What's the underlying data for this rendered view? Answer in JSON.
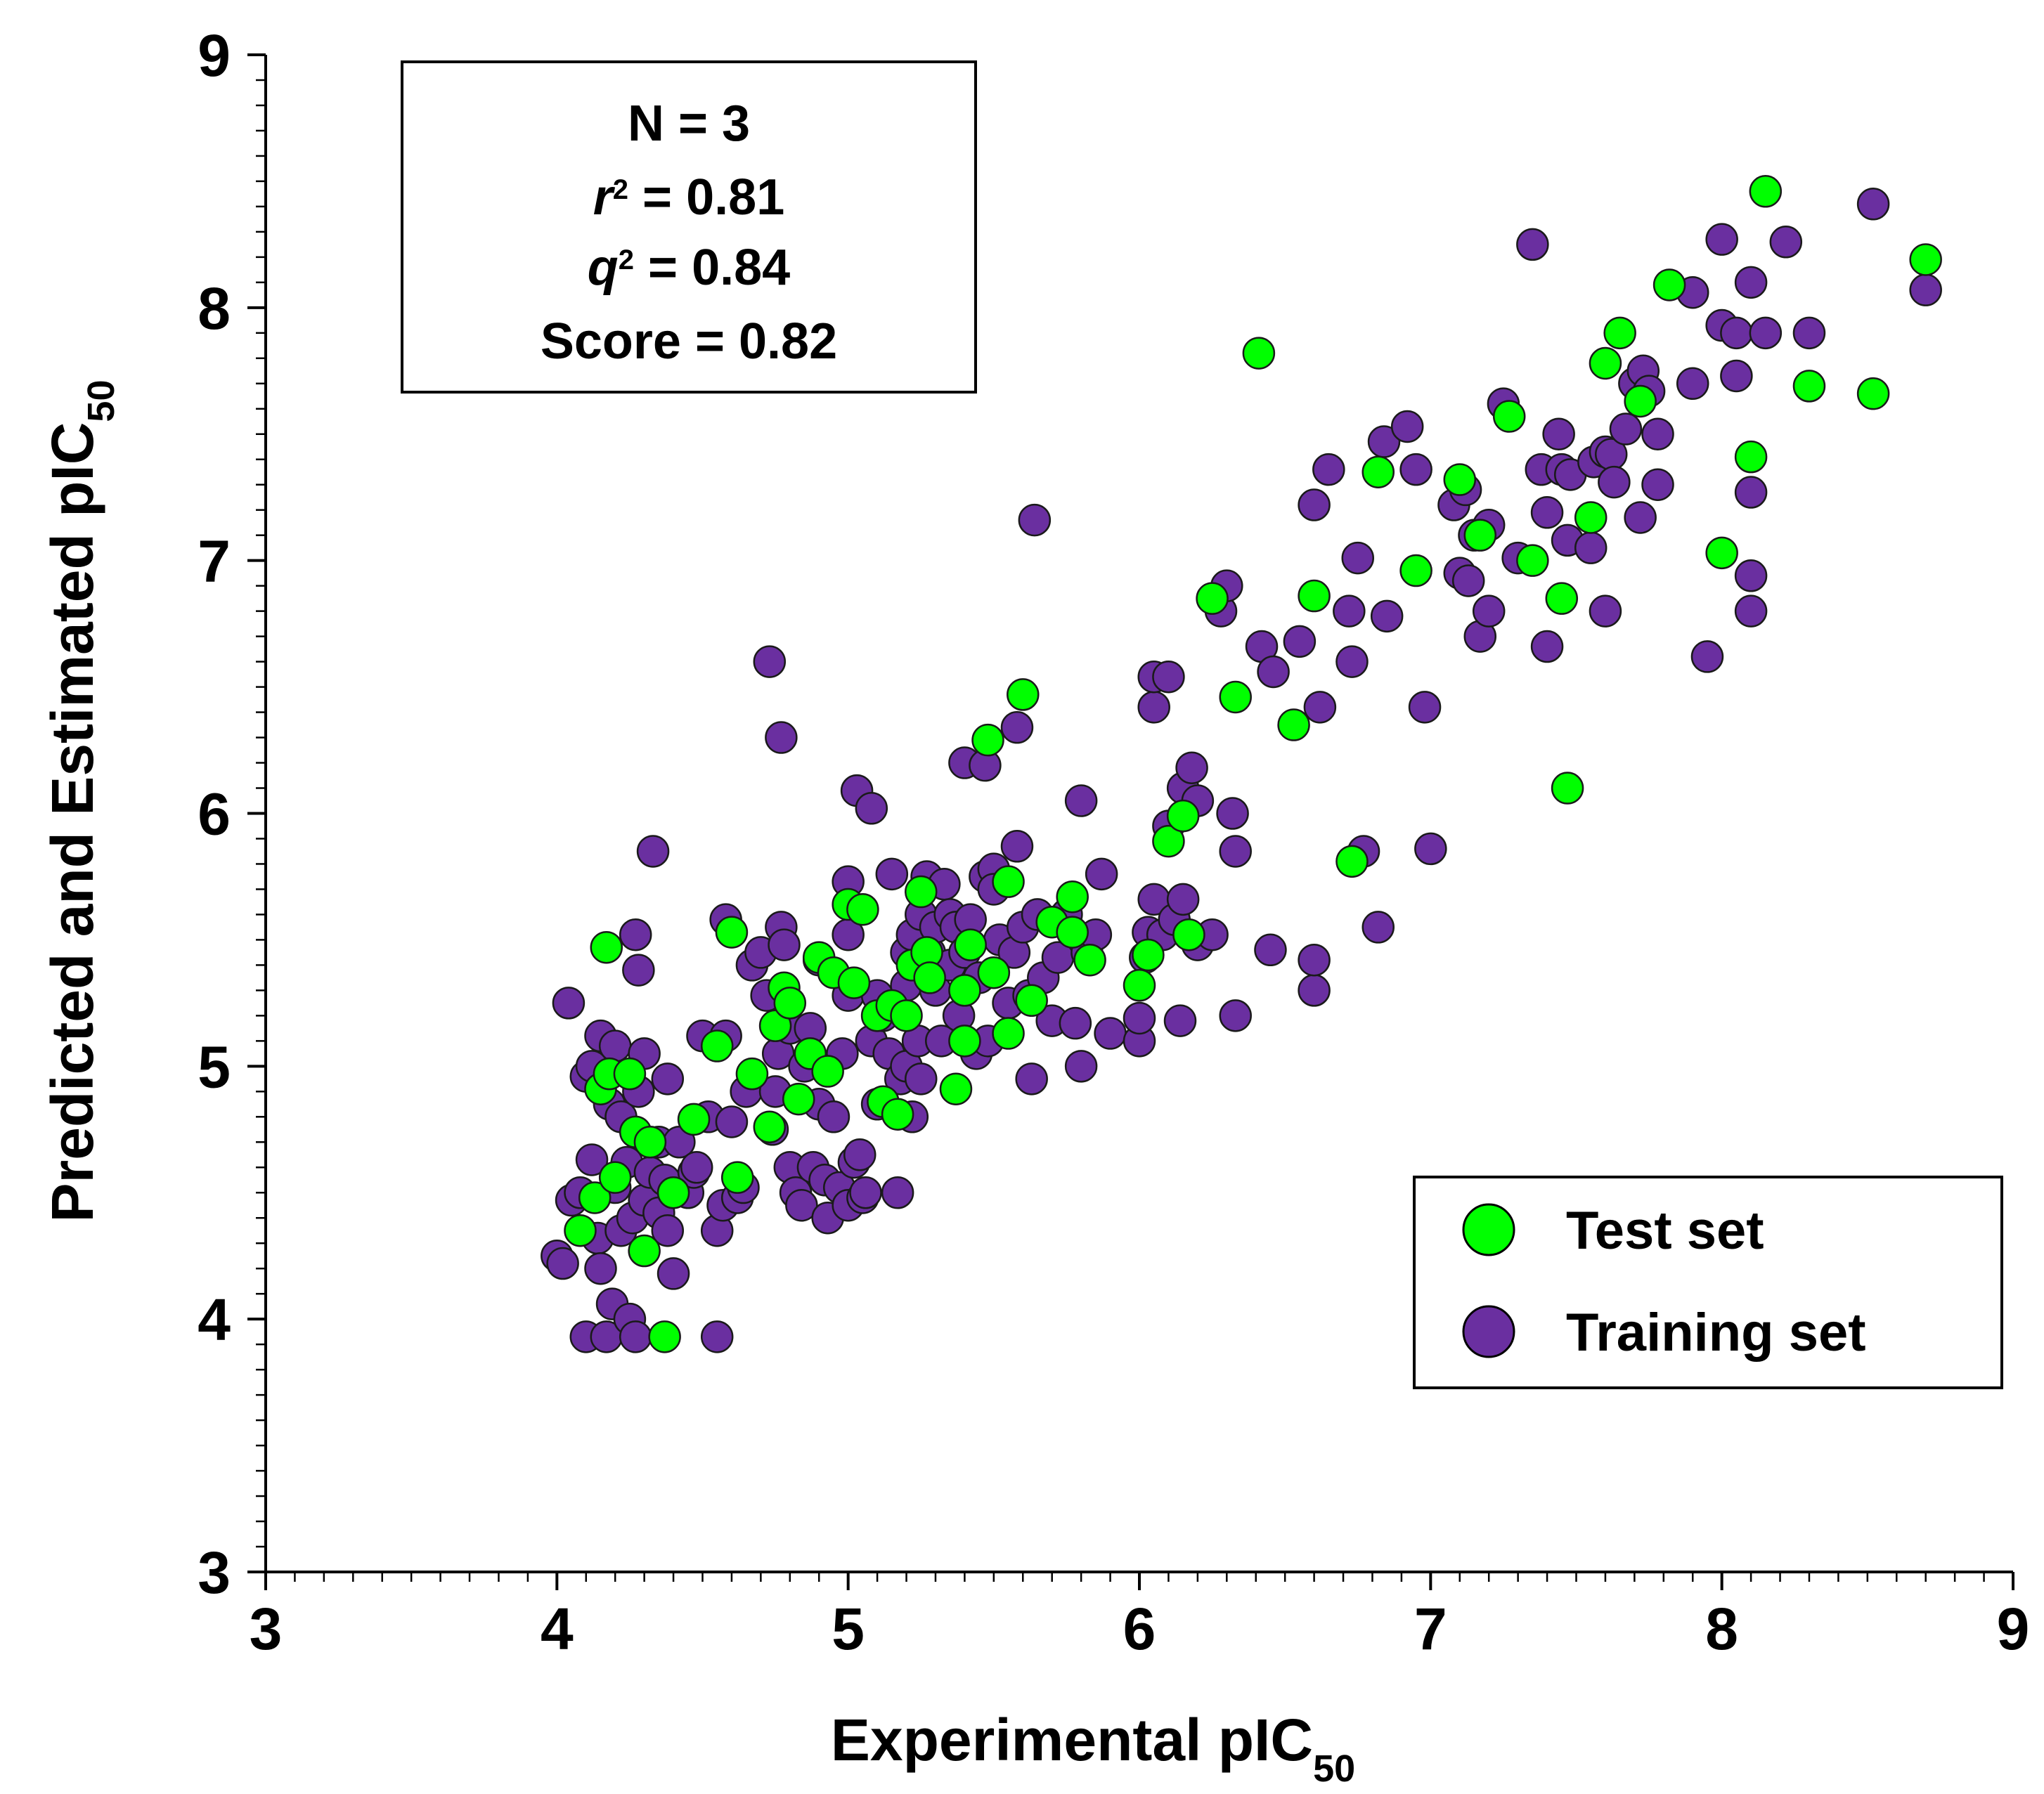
{
  "chart_data": {
    "type": "scatter",
    "title": "",
    "xlabel": "Experimental pIC",
    "xlabel_sub": "50",
    "ylabel": "Predicted and Estimated pIC",
    "ylabel_sub": "50",
    "xlim": [
      3,
      9
    ],
    "ylim": [
      3,
      9
    ],
    "x_ticks": [
      "3",
      "4",
      "5",
      "6",
      "7",
      "8",
      "9"
    ],
    "y_ticks": [
      "3",
      "4",
      "5",
      "6",
      "7",
      "8",
      "9"
    ],
    "grid": false,
    "legend_position": "bottom-right",
    "stats": {
      "n_label": "N = 3",
      "r2_symbol": "r",
      "r2_value": "  = 0.81",
      "q2_symbol": "q",
      "q2_value": " = 0.84",
      "sup": "2",
      "score": "Score = 0.82"
    },
    "series": [
      {
        "name": "Training set",
        "color": "#6a2fa0",
        "points": [
          [
            4.0,
            4.25
          ],
          [
            4.02,
            4.22
          ],
          [
            4.04,
            5.25
          ],
          [
            4.05,
            4.47
          ],
          [
            4.08,
            4.5
          ],
          [
            4.1,
            4.96
          ],
          [
            4.1,
            3.93
          ],
          [
            4.12,
            4.63
          ],
          [
            4.12,
            5.0
          ],
          [
            4.14,
            4.32
          ],
          [
            4.15,
            4.2
          ],
          [
            4.15,
            5.12
          ],
          [
            4.17,
            3.93
          ],
          [
            4.18,
            4.85
          ],
          [
            4.19,
            4.06
          ],
          [
            4.2,
            5.08
          ],
          [
            4.2,
            4.52
          ],
          [
            4.22,
            4.8
          ],
          [
            4.22,
            4.35
          ],
          [
            4.24,
            4.62
          ],
          [
            4.25,
            4.0
          ],
          [
            4.26,
            4.4
          ],
          [
            4.27,
            3.93
          ],
          [
            4.27,
            5.52
          ],
          [
            4.28,
            5.38
          ],
          [
            4.28,
            4.9
          ],
          [
            4.3,
            4.47
          ],
          [
            4.3,
            5.05
          ],
          [
            4.32,
            4.58
          ],
          [
            4.33,
            5.85
          ],
          [
            4.35,
            4.42
          ],
          [
            4.35,
            4.7
          ],
          [
            4.37,
            4.55
          ],
          [
            4.38,
            4.35
          ],
          [
            4.38,
            4.95
          ],
          [
            4.4,
            4.18
          ],
          [
            4.42,
            4.7
          ],
          [
            4.45,
            4.5
          ],
          [
            4.47,
            4.58
          ],
          [
            4.48,
            4.6
          ],
          [
            4.5,
            5.12
          ],
          [
            4.52,
            4.8
          ],
          [
            4.55,
            4.35
          ],
          [
            4.55,
            3.93
          ],
          [
            4.57,
            4.45
          ],
          [
            4.58,
            5.58
          ],
          [
            4.58,
            5.12
          ],
          [
            4.6,
            4.78
          ],
          [
            4.62,
            4.48
          ],
          [
            4.64,
            4.52
          ],
          [
            4.65,
            4.9
          ],
          [
            4.67,
            5.4
          ],
          [
            4.7,
            5.45
          ],
          [
            4.72,
            5.28
          ],
          [
            4.73,
            6.6
          ],
          [
            4.74,
            4.75
          ],
          [
            4.75,
            4.9
          ],
          [
            4.76,
            5.05
          ],
          [
            4.77,
            5.55
          ],
          [
            4.77,
            6.3
          ],
          [
            4.78,
            5.48
          ],
          [
            4.8,
            5.15
          ],
          [
            4.8,
            4.6
          ],
          [
            4.82,
            4.5
          ],
          [
            4.84,
            4.45
          ],
          [
            4.85,
            5.0
          ],
          [
            4.87,
            5.15
          ],
          [
            4.88,
            4.6
          ],
          [
            4.9,
            5.42
          ],
          [
            4.9,
            4.85
          ],
          [
            4.92,
            4.55
          ],
          [
            4.93,
            4.4
          ],
          [
            4.95,
            4.8
          ],
          [
            4.97,
            4.52
          ],
          [
            4.98,
            5.05
          ],
          [
            5.0,
            5.28
          ],
          [
            5.0,
            5.73
          ],
          [
            5.0,
            5.52
          ],
          [
            5.0,
            4.45
          ],
          [
            5.02,
            4.62
          ],
          [
            5.03,
            6.09
          ],
          [
            5.04,
            4.65
          ],
          [
            5.05,
            4.48
          ],
          [
            5.06,
            4.5
          ],
          [
            5.08,
            5.1
          ],
          [
            5.08,
            6.02
          ],
          [
            5.1,
            5.28
          ],
          [
            5.1,
            4.85
          ],
          [
            5.12,
            5.2
          ],
          [
            5.14,
            5.05
          ],
          [
            5.15,
            5.76
          ],
          [
            5.17,
            4.5
          ],
          [
            5.18,
            4.95
          ],
          [
            5.2,
            5.45
          ],
          [
            5.2,
            5.32
          ],
          [
            5.2,
            5.0
          ],
          [
            5.22,
            5.52
          ],
          [
            5.22,
            4.8
          ],
          [
            5.24,
            5.1
          ],
          [
            5.25,
            4.95
          ],
          [
            5.25,
            5.6
          ],
          [
            5.27,
            5.75
          ],
          [
            5.28,
            5.45
          ],
          [
            5.3,
            5.3
          ],
          [
            5.3,
            5.55
          ],
          [
            5.32,
            5.1
          ],
          [
            5.33,
            5.72
          ],
          [
            5.35,
            5.4
          ],
          [
            5.35,
            5.6
          ],
          [
            5.37,
            5.55
          ],
          [
            5.38,
            5.2
          ],
          [
            5.4,
            6.2
          ],
          [
            5.4,
            5.45
          ],
          [
            5.42,
            5.58
          ],
          [
            5.44,
            5.05
          ],
          [
            5.45,
            5.35
          ],
          [
            5.47,
            6.19
          ],
          [
            5.47,
            5.75
          ],
          [
            5.48,
            5.1
          ],
          [
            5.5,
            5.78
          ],
          [
            5.5,
            5.7
          ],
          [
            5.52,
            5.5
          ],
          [
            5.55,
            5.25
          ],
          [
            5.57,
            5.45
          ],
          [
            5.58,
            6.34
          ],
          [
            5.58,
            5.87
          ],
          [
            5.6,
            5.55
          ],
          [
            5.62,
            5.28
          ],
          [
            5.63,
            4.95
          ],
          [
            5.64,
            7.16
          ],
          [
            5.65,
            5.6
          ],
          [
            5.67,
            5.35
          ],
          [
            5.7,
            5.18
          ],
          [
            5.72,
            5.43
          ],
          [
            5.75,
            5.6
          ],
          [
            5.78,
            5.17
          ],
          [
            5.8,
            6.05
          ],
          [
            5.8,
            5.0
          ],
          [
            5.82,
            5.45
          ],
          [
            5.85,
            5.52
          ],
          [
            5.87,
            5.76
          ],
          [
            5.9,
            5.13
          ],
          [
            6.0,
            5.1
          ],
          [
            6.0,
            5.19
          ],
          [
            6.02,
            5.43
          ],
          [
            6.03,
            5.53
          ],
          [
            6.05,
            5.66
          ],
          [
            6.05,
            6.42
          ],
          [
            6.05,
            6.54
          ],
          [
            6.08,
            5.52
          ],
          [
            6.1,
            6.54
          ],
          [
            6.1,
            5.95
          ],
          [
            6.12,
            5.58
          ],
          [
            6.14,
            5.18
          ],
          [
            6.15,
            5.66
          ],
          [
            6.15,
            6.1
          ],
          [
            6.18,
            6.18
          ],
          [
            6.2,
            6.05
          ],
          [
            6.2,
            5.48
          ],
          [
            6.25,
            5.52
          ],
          [
            6.28,
            6.8
          ],
          [
            6.3,
            6.9
          ],
          [
            6.32,
            6.0
          ],
          [
            6.33,
            5.85
          ],
          [
            6.33,
            5.2
          ],
          [
            6.42,
            6.66
          ],
          [
            6.45,
            5.46
          ],
          [
            6.46,
            6.56
          ],
          [
            6.55,
            6.68
          ],
          [
            6.6,
            5.3
          ],
          [
            6.6,
            5.42
          ],
          [
            6.6,
            7.22
          ],
          [
            6.62,
            6.42
          ],
          [
            6.65,
            7.36
          ],
          [
            6.72,
            6.8
          ],
          [
            6.73,
            6.6
          ],
          [
            6.75,
            7.01
          ],
          [
            6.77,
            5.85
          ],
          [
            6.82,
            5.55
          ],
          [
            6.84,
            7.47
          ],
          [
            6.85,
            6.78
          ],
          [
            6.92,
            7.53
          ],
          [
            6.95,
            7.36
          ],
          [
            6.98,
            6.42
          ],
          [
            7.0,
            5.86
          ],
          [
            7.08,
            7.22
          ],
          [
            7.1,
            6.95
          ],
          [
            7.12,
            7.28
          ],
          [
            7.13,
            6.92
          ],
          [
            7.15,
            7.1
          ],
          [
            7.17,
            6.7
          ],
          [
            7.2,
            7.14
          ],
          [
            7.2,
            6.8
          ],
          [
            7.25,
            7.62
          ],
          [
            7.3,
            7.01
          ],
          [
            7.35,
            8.25
          ],
          [
            7.38,
            7.36
          ],
          [
            7.4,
            7.19
          ],
          [
            7.4,
            6.66
          ],
          [
            7.44,
            7.5
          ],
          [
            7.45,
            7.36
          ],
          [
            7.48,
            7.34
          ],
          [
            7.47,
            7.08
          ],
          [
            7.55,
            7.05
          ],
          [
            7.56,
            7.39
          ],
          [
            7.6,
            7.43
          ],
          [
            7.6,
            6.8
          ],
          [
            7.62,
            7.42
          ],
          [
            7.63,
            7.31
          ],
          [
            7.67,
            7.52
          ],
          [
            7.7,
            7.7
          ],
          [
            7.72,
            7.17
          ],
          [
            7.73,
            7.75
          ],
          [
            7.75,
            7.67
          ],
          [
            7.78,
            7.5
          ],
          [
            7.78,
            7.3
          ],
          [
            7.9,
            8.06
          ],
          [
            7.9,
            7.7
          ],
          [
            7.95,
            6.62
          ],
          [
            8.0,
            7.93
          ],
          [
            8.0,
            8.27
          ],
          [
            8.05,
            7.73
          ],
          [
            8.05,
            7.9
          ],
          [
            8.1,
            8.1
          ],
          [
            8.1,
            7.27
          ],
          [
            8.1,
            6.94
          ],
          [
            8.1,
            6.8
          ],
          [
            8.15,
            7.9
          ],
          [
            8.22,
            8.26
          ],
          [
            8.3,
            7.9
          ],
          [
            8.52,
            8.41
          ],
          [
            8.7,
            8.07
          ]
        ]
      },
      {
        "name": "Test set",
        "color": "#00ff00",
        "points": [
          [
            4.08,
            4.35
          ],
          [
            4.13,
            4.48
          ],
          [
            4.15,
            4.91
          ],
          [
            4.17,
            5.47
          ],
          [
            4.18,
            4.97
          ],
          [
            4.2,
            4.56
          ],
          [
            4.25,
            4.97
          ],
          [
            4.27,
            4.74
          ],
          [
            4.3,
            4.27
          ],
          [
            4.32,
            4.7
          ],
          [
            4.37,
            3.93
          ],
          [
            4.4,
            4.5
          ],
          [
            4.47,
            4.79
          ],
          [
            4.55,
            5.08
          ],
          [
            4.6,
            5.53
          ],
          [
            4.62,
            4.56
          ],
          [
            4.67,
            4.97
          ],
          [
            4.73,
            4.76
          ],
          [
            4.75,
            5.16
          ],
          [
            4.78,
            5.31
          ],
          [
            4.8,
            5.25
          ],
          [
            4.83,
            4.87
          ],
          [
            4.87,
            5.05
          ],
          [
            4.9,
            5.43
          ],
          [
            4.93,
            4.98
          ],
          [
            4.95,
            5.37
          ],
          [
            5.0,
            5.64
          ],
          [
            5.02,
            5.33
          ],
          [
            5.05,
            5.62
          ],
          [
            5.1,
            5.2
          ],
          [
            5.12,
            4.86
          ],
          [
            5.15,
            5.24
          ],
          [
            5.17,
            4.81
          ],
          [
            5.2,
            5.2
          ],
          [
            5.22,
            5.4
          ],
          [
            5.25,
            5.69
          ],
          [
            5.27,
            5.45
          ],
          [
            5.28,
            5.35
          ],
          [
            5.4,
            5.1
          ],
          [
            5.4,
            5.3
          ],
          [
            5.42,
            5.48
          ],
          [
            5.37,
            4.91
          ],
          [
            5.48,
            6.29
          ],
          [
            5.5,
            5.37
          ],
          [
            5.55,
            5.73
          ],
          [
            5.55,
            5.13
          ],
          [
            5.6,
            6.47
          ],
          [
            5.63,
            5.26
          ],
          [
            5.7,
            5.57
          ],
          [
            5.77,
            5.53
          ],
          [
            5.77,
            5.67
          ],
          [
            5.83,
            5.42
          ],
          [
            6.0,
            5.32
          ],
          [
            6.03,
            5.44
          ],
          [
            6.1,
            5.89
          ],
          [
            6.15,
            5.99
          ],
          [
            6.17,
            5.52
          ],
          [
            6.25,
            6.85
          ],
          [
            6.33,
            6.46
          ],
          [
            6.41,
            7.82
          ],
          [
            6.53,
            6.35
          ],
          [
            6.6,
            6.86
          ],
          [
            6.73,
            5.81
          ],
          [
            6.82,
            7.35
          ],
          [
            6.95,
            6.96
          ],
          [
            7.1,
            7.32
          ],
          [
            7.17,
            7.1
          ],
          [
            7.27,
            7.57
          ],
          [
            7.35,
            7.0
          ],
          [
            7.47,
            6.1
          ],
          [
            7.45,
            6.85
          ],
          [
            7.55,
            7.17
          ],
          [
            7.6,
            7.78
          ],
          [
            7.65,
            7.9
          ],
          [
            7.72,
            7.63
          ],
          [
            7.82,
            8.09
          ],
          [
            8.0,
            7.03
          ],
          [
            8.1,
            7.41
          ],
          [
            8.15,
            8.46
          ],
          [
            8.3,
            7.69
          ],
          [
            8.52,
            7.66
          ],
          [
            8.7,
            8.19
          ]
        ]
      }
    ]
  }
}
